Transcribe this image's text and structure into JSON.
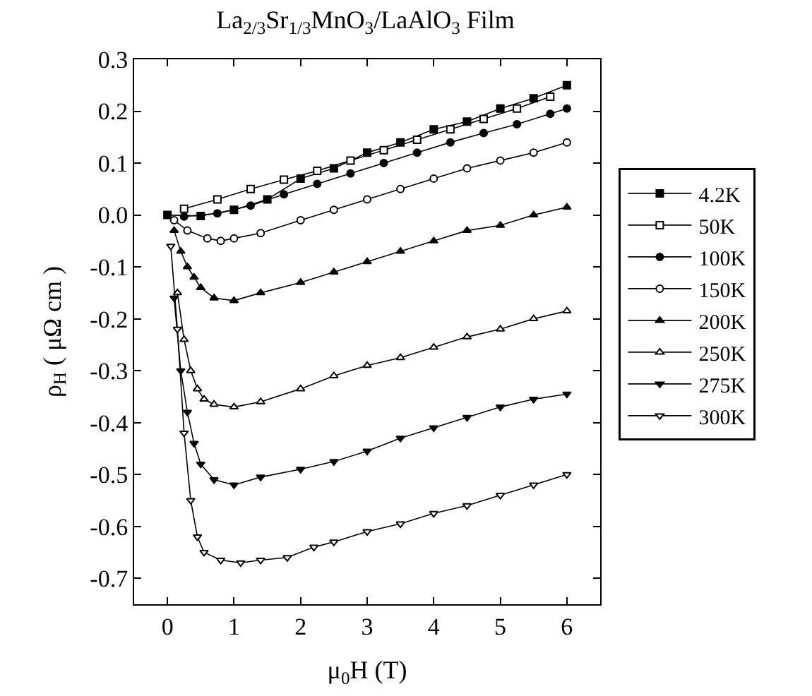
{
  "chart_data": {
    "type": "line",
    "title": "La$_{2/3}$Sr$_{1/3}$MnO$_{3}$/LaAlO$_{3}$ Film",
    "xlabel": "μ$_{0}$H (T)",
    "ylabel": "ρ$_{H}$ ( μΩ cm )",
    "xlim": [
      -0.5,
      6.5
    ],
    "xticks": [
      0,
      1,
      2,
      3,
      4,
      5,
      6
    ],
    "ylim": [
      -0.75,
      0.3
    ],
    "yticks": [
      -0.7,
      -0.6,
      -0.5,
      -0.4,
      -0.3,
      -0.2,
      -0.1,
      {
        "value": 0,
        "label": "0.0"
      },
      0.1,
      0.2,
      0.3
    ],
    "legend": "right",
    "line_style": "solid",
    "series": [
      {
        "name": "4.2K",
        "color": "#000000",
        "marker": "square",
        "x": [
          0,
          0.5,
          1,
          1.5,
          2,
          2.5,
          3,
          3.5,
          4,
          4.5,
          5,
          5.5,
          6
        ],
        "values": [
          0,
          -0.002,
          0.01,
          0.03,
          0.07,
          0.09,
          0.12,
          0.14,
          0.165,
          0.18,
          0.205,
          0.225,
          0.25
        ]
      },
      {
        "name": "50K",
        "color": "#000000",
        "marker": "square",
        "x": [
          0.25,
          0.75,
          1.25,
          1.75,
          2.25,
          2.75,
          3.25,
          3.75,
          4.25,
          4.75,
          5.25,
          5.75
        ],
        "values": [
          0.012,
          0.03,
          0.05,
          0.068,
          0.085,
          0.105,
          0.125,
          0.145,
          0.165,
          0.185,
          0.205,
          0.228
        ]
      },
      {
        "name": "100K",
        "color": "#000000",
        "marker": "circle",
        "x": [
          0.25,
          0.75,
          1.25,
          1.75,
          2.25,
          2.75,
          3.25,
          3.75,
          4.25,
          4.75,
          5.25,
          5.75,
          6
        ],
        "values": [
          -0.003,
          0.003,
          0.018,
          0.04,
          0.06,
          0.08,
          0.1,
          0.12,
          0.14,
          0.158,
          0.175,
          0.195,
          0.205
        ]
      },
      {
        "name": "150K",
        "color": "#000000",
        "marker": "circle",
        "x": [
          0.1,
          0.3,
          0.6,
          0.8,
          1,
          1.4,
          2,
          2.5,
          3,
          3.5,
          4,
          4.5,
          5,
          5.5,
          6
        ],
        "values": [
          -0.01,
          -0.03,
          -0.045,
          -0.05,
          -0.045,
          -0.035,
          -0.01,
          0.01,
          0.03,
          0.05,
          0.07,
          0.09,
          0.105,
          0.12,
          0.14
        ]
      },
      {
        "name": "200K",
        "color": "#000000",
        "marker": "triangle",
        "x": [
          0.1,
          0.2,
          0.3,
          0.4,
          0.5,
          0.7,
          1,
          1.4,
          2,
          2.5,
          3,
          3.5,
          4,
          4.5,
          5,
          5.5,
          6
        ],
        "values": [
          -0.03,
          -0.07,
          -0.1,
          -0.12,
          -0.14,
          -0.16,
          -0.165,
          -0.15,
          -0.13,
          -0.11,
          -0.09,
          -0.07,
          -0.05,
          -0.03,
          -0.02,
          0,
          0.015
        ]
      },
      {
        "name": "250K",
        "color": "#000000",
        "marker": "triangle",
        "x": [
          0.15,
          0.25,
          0.35,
          0.45,
          0.55,
          0.7,
          1,
          1.4,
          2,
          2.5,
          3,
          3.5,
          4,
          4.5,
          5,
          5.5,
          6
        ],
        "values": [
          -0.15,
          -0.24,
          -0.3,
          -0.335,
          -0.355,
          -0.365,
          -0.37,
          -0.36,
          -0.335,
          -0.31,
          -0.29,
          -0.275,
          -0.255,
          -0.235,
          -0.22,
          -0.2,
          -0.185
        ]
      },
      {
        "name": "275K",
        "color": "#000000",
        "marker": "triangle",
        "x": [
          0.1,
          0.2,
          0.3,
          0.4,
          0.5,
          0.7,
          1,
          1.4,
          2,
          2.5,
          3,
          3.5,
          4,
          4.5,
          5,
          5.5,
          6
        ],
        "values": [
          -0.16,
          -0.3,
          -0.38,
          -0.44,
          -0.48,
          -0.51,
          -0.52,
          -0.505,
          -0.49,
          -0.475,
          -0.455,
          -0.43,
          -0.41,
          -0.39,
          -0.37,
          -0.355,
          -0.345
        ]
      },
      {
        "name": "300K",
        "color": "#000000",
        "marker": "triangle",
        "x": [
          0.05,
          0.15,
          0.25,
          0.35,
          0.45,
          0.55,
          0.8,
          1.1,
          1.4,
          1.8,
          2.2,
          2.5,
          3,
          3.5,
          4,
          4.5,
          5,
          5.5,
          6
        ],
        "values": [
          -0.06,
          -0.22,
          -0.42,
          -0.55,
          -0.62,
          -0.65,
          -0.665,
          -0.67,
          -0.665,
          -0.66,
          -0.64,
          -0.63,
          -0.61,
          -0.595,
          -0.575,
          -0.56,
          -0.54,
          -0.52,
          -0.5
        ]
      }
    ]
  }
}
